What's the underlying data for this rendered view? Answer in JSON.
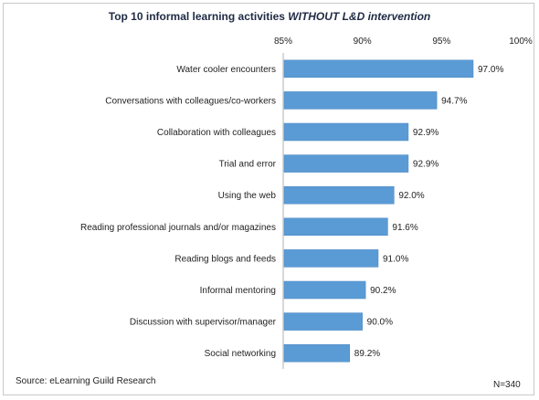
{
  "chart_data": {
    "type": "bar",
    "orientation": "horizontal",
    "title_main": "Top 10 informal learning activities ",
    "title_emph": "WITHOUT L&D intervention",
    "xlim": [
      85,
      100
    ],
    "x_ticks": [
      "85%",
      "90%",
      "95%",
      "100%"
    ],
    "x_tick_values": [
      85,
      90,
      95,
      100
    ],
    "x_axis_position": "top",
    "grid": false,
    "bar_color": "#5b9bd5",
    "categories": [
      "Water cooler encounters",
      "Conversations with colleagues/co-workers",
      "Collaboration with colleagues",
      "Trial and error",
      "Using the web",
      "Reading  professional journals and/or magazines",
      "Reading blogs and feeds",
      "Informal mentoring",
      "Discussion with supervisor/manager",
      "Social networking"
    ],
    "values": [
      97.0,
      94.7,
      92.9,
      92.9,
      92.0,
      91.6,
      91.0,
      90.2,
      90.0,
      89.2
    ],
    "value_labels": [
      "97.0%",
      "94.7%",
      "92.9%",
      "92.9%",
      "92.0%",
      "91.6%",
      "91.0%",
      "90.2%",
      "90.0%",
      "89.2%"
    ]
  },
  "footer": {
    "source": "Source: eLearning Guild Research",
    "n": "N=340"
  }
}
